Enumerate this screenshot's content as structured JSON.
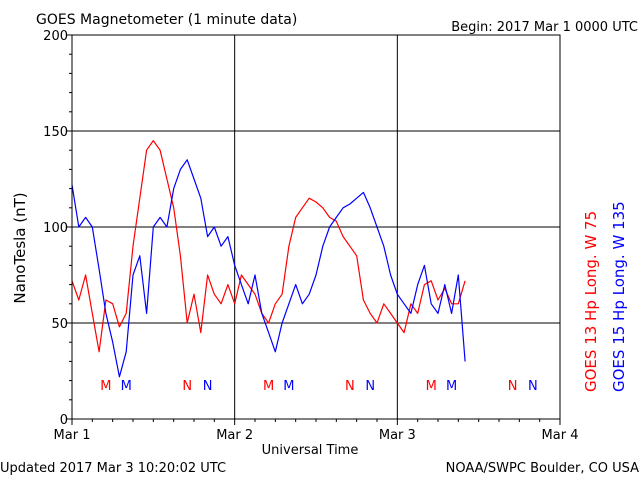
{
  "header": {
    "title": "GOES Magnetometer (1 minute data)",
    "begin": "Begin:  2017 Mar 1 0000 UTC"
  },
  "footer": {
    "updated": "Updated 2017 Mar  3 10:20:02 UTC",
    "source": "NOAA/SWPC Boulder, CO USA"
  },
  "chart_data": {
    "type": "line",
    "xlabel": "Universal Time",
    "ylabel": "NanoTesla (nT)",
    "ylim": [
      0,
      200
    ],
    "xlim": [
      "2017-03-01 00:00",
      "2017-03-04 00:00"
    ],
    "yticks": [
      0,
      50,
      100,
      150,
      200
    ],
    "x_tick_labels": [
      "Mar 1",
      "Mar 2",
      "Mar 3",
      "Mar 4"
    ],
    "grid": true,
    "legend": [
      {
        "text": "GOES 13 Hp  Long. W 75",
        "color": "#ff0000"
      },
      {
        "text": "GOES 15 Hp  Long. W 135",
        "color": "#0000ff"
      }
    ],
    "series": [
      {
        "name": "GOES 13 Hp  Long. W 75",
        "color": "#ff0000",
        "x": [
          "Mar 1 00:00",
          "Mar 1 01:00",
          "Mar 1 02:00",
          "Mar 1 03:00",
          "Mar 1 04:00",
          "Mar 1 05:00",
          "Mar 1 06:00",
          "Mar 1 07:00",
          "Mar 1 08:00",
          "Mar 1 09:00",
          "Mar 1 10:00",
          "Mar 1 11:00",
          "Mar 1 12:00",
          "Mar 1 13:00",
          "Mar 1 14:00",
          "Mar 1 15:00",
          "Mar 1 16:00",
          "Mar 1 17:00",
          "Mar 1 18:00",
          "Mar 1 19:00",
          "Mar 1 20:00",
          "Mar 1 21:00",
          "Mar 1 22:00",
          "Mar 1 23:00",
          "Mar 2 00:00",
          "Mar 2 01:00",
          "Mar 2 02:00",
          "Mar 2 03:00",
          "Mar 2 04:00",
          "Mar 2 05:00",
          "Mar 2 06:00",
          "Mar 2 07:00",
          "Mar 2 08:00",
          "Mar 2 09:00",
          "Mar 2 10:00",
          "Mar 2 11:00",
          "Mar 2 12:00",
          "Mar 2 13:00",
          "Mar 2 14:00",
          "Mar 2 15:00",
          "Mar 2 16:00",
          "Mar 2 17:00",
          "Mar 2 18:00",
          "Mar 2 19:00",
          "Mar 2 20:00",
          "Mar 2 21:00",
          "Mar 2 22:00",
          "Mar 2 23:00",
          "Mar 3 00:00",
          "Mar 3 01:00",
          "Mar 3 02:00",
          "Mar 3 03:00",
          "Mar 3 04:00",
          "Mar 3 05:00",
          "Mar 3 06:00",
          "Mar 3 07:00",
          "Mar 3 08:00",
          "Mar 3 09:00",
          "Mar 3 10:00"
        ],
        "y": [
          72,
          62,
          75,
          55,
          35,
          62,
          60,
          48,
          55,
          90,
          115,
          140,
          145,
          140,
          125,
          110,
          85,
          50,
          65,
          45,
          75,
          65,
          60,
          70,
          60,
          75,
          70,
          65,
          55,
          50,
          60,
          65,
          90,
          105,
          110,
          115,
          113,
          110,
          105,
          103,
          95,
          90,
          85,
          62,
          55,
          50,
          60,
          55,
          50,
          45,
          60,
          55,
          70,
          72,
          62,
          68,
          60,
          60,
          72
        ]
      },
      {
        "name": "GOES 15 Hp  Long. W 135",
        "color": "#0000ff",
        "x": [
          "Mar 1 00:00",
          "Mar 1 01:00",
          "Mar 1 02:00",
          "Mar 1 03:00",
          "Mar 1 04:00",
          "Mar 1 05:00",
          "Mar 1 06:00",
          "Mar 1 07:00",
          "Mar 1 08:00",
          "Mar 1 09:00",
          "Mar 1 10:00",
          "Mar 1 11:00",
          "Mar 1 12:00",
          "Mar 1 13:00",
          "Mar 1 14:00",
          "Mar 1 15:00",
          "Mar 1 16:00",
          "Mar 1 17:00",
          "Mar 1 18:00",
          "Mar 1 19:00",
          "Mar 1 20:00",
          "Mar 1 21:00",
          "Mar 1 22:00",
          "Mar 1 23:00",
          "Mar 2 00:00",
          "Mar 2 01:00",
          "Mar 2 02:00",
          "Mar 2 03:00",
          "Mar 2 04:00",
          "Mar 2 05:00",
          "Mar 2 06:00",
          "Mar 2 07:00",
          "Mar 2 08:00",
          "Mar 2 09:00",
          "Mar 2 10:00",
          "Mar 2 11:00",
          "Mar 2 12:00",
          "Mar 2 13:00",
          "Mar 2 14:00",
          "Mar 2 15:00",
          "Mar 2 16:00",
          "Mar 2 17:00",
          "Mar 2 18:00",
          "Mar 2 19:00",
          "Mar 2 20:00",
          "Mar 2 21:00",
          "Mar 2 22:00",
          "Mar 2 23:00",
          "Mar 3 00:00",
          "Mar 3 01:00",
          "Mar 3 02:00",
          "Mar 3 03:00",
          "Mar 3 04:00",
          "Mar 3 05:00",
          "Mar 3 06:00",
          "Mar 3 07:00",
          "Mar 3 08:00",
          "Mar 3 09:00",
          "Mar 3 10:00"
        ],
        "y": [
          122,
          100,
          105,
          100,
          78,
          55,
          40,
          22,
          35,
          75,
          85,
          55,
          100,
          105,
          100,
          120,
          130,
          135,
          125,
          115,
          95,
          100,
          90,
          95,
          80,
          70,
          60,
          75,
          55,
          45,
          35,
          50,
          60,
          70,
          60,
          65,
          75,
          90,
          100,
          105,
          110,
          112,
          115,
          118,
          110,
          100,
          90,
          75,
          65,
          60,
          55,
          70,
          80,
          60,
          55,
          70,
          55,
          75,
          30
        ]
      }
    ],
    "event_markers": [
      {
        "label": "M",
        "x": "Mar 1 05:00",
        "color": "#ff0000"
      },
      {
        "label": "M",
        "x": "Mar 1 08:00",
        "color": "#0000ff"
      },
      {
        "label": "N",
        "x": "Mar 1 17:00",
        "color": "#ff0000"
      },
      {
        "label": "N",
        "x": "Mar 1 20:00",
        "color": "#0000ff"
      },
      {
        "label": "M",
        "x": "Mar 2 05:00",
        "color": "#ff0000"
      },
      {
        "label": "M",
        "x": "Mar 2 08:00",
        "color": "#0000ff"
      },
      {
        "label": "N",
        "x": "Mar 2 17:00",
        "color": "#ff0000"
      },
      {
        "label": "N",
        "x": "Mar 2 20:00",
        "color": "#0000ff"
      },
      {
        "label": "M",
        "x": "Mar 3 05:00",
        "color": "#ff0000"
      },
      {
        "label": "M",
        "x": "Mar 3 08:00",
        "color": "#0000ff"
      },
      {
        "label": "N",
        "x": "Mar 3 17:00",
        "color": "#ff0000"
      },
      {
        "label": "N",
        "x": "Mar 3 20:00",
        "color": "#0000ff"
      }
    ]
  }
}
